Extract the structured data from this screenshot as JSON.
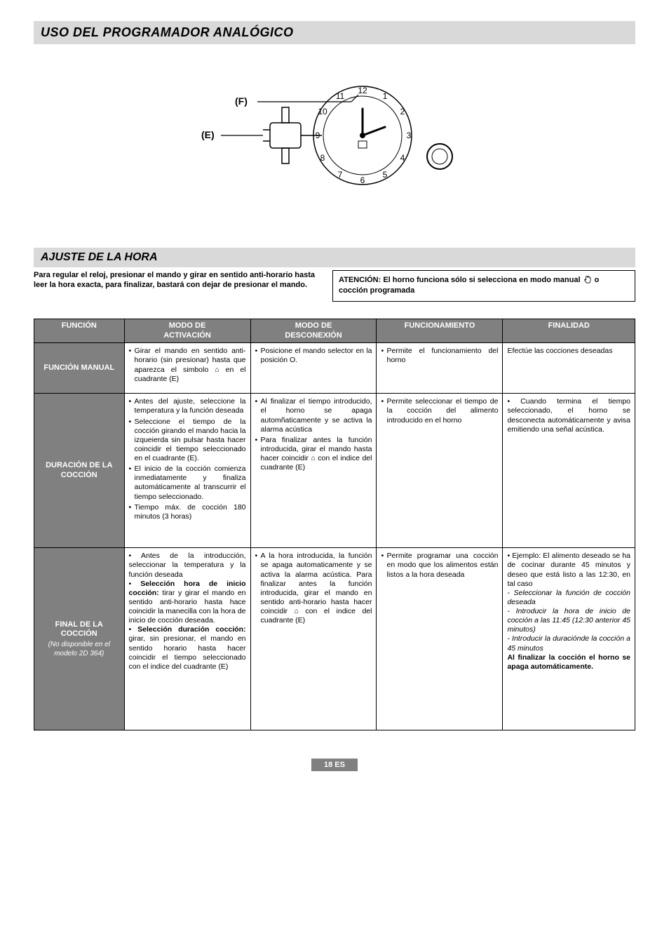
{
  "page": {
    "title": "USO DEL PROGRAMADOR ANALÓGICO",
    "section_title": "AJUSTE DE LA HORA",
    "intro_left": "Para regular el reloj, presionar el mando y girar en sentido anti-horario hasta leer la hora exacta, para finalizar, bastará con dejar de presionar el mando.",
    "intro_right_a": "ATENCIÓN: El horno funciona sólo si selecciona en modo manual ",
    "intro_right_b": " o cocción programada",
    "footer": "18 ES"
  },
  "diagram": {
    "label_f": "(F)",
    "label_e": "(E)",
    "clock_numbers": [
      "12",
      "1",
      "2",
      "3",
      "4",
      "5",
      "6",
      "7",
      "8",
      "9",
      "10",
      "11"
    ],
    "colors": {
      "stroke": "#000000",
      "fill": "#ffffff",
      "pointer": "#000000"
    }
  },
  "table": {
    "headers": {
      "funcion": "FUNCIÓN",
      "activacion": "MODO DE\nACTIVACIÓN",
      "desconexion": "MODO DE\nDESCONEXIÓN",
      "funcionamiento": "FUNCIONAMIENTO",
      "finalidad": "FINALIDAD"
    },
    "rows": [
      {
        "label": "FUNCIÓN MANUAL",
        "sublabel": "",
        "activacion": [
          "Girar el mando en sentido anti-horario (sin presionar) hasta que aparezca el simbolo ⌂ en el cuadrante (E)"
        ],
        "desconexion": [
          "Posicione el mando selector en la posición O."
        ],
        "funcionamiento": [
          "Permite el funcionamiento del horno"
        ],
        "finalidad": [
          "Efectúe las cocciones deseadas"
        ],
        "finalidad_html": "Efectúe las cocciones deseadas",
        "rowclass": "short-row"
      },
      {
        "label": "DURACIÓN DE LA COCCIÓN",
        "sublabel": "",
        "activacion": [
          "Antes del ajuste, selec­cione la temperatura y la función deseada",
          "Seleccione el tiempo de la cocción girando el mando hacia la izqueierda sin pulsar hasta hacer coincidir el tiempo seleccionado en el cuadrante (E).",
          "El inicio de la cocción comienza inmediatamente y finaliza automáticamente al transcurrir el tiempo seleccionado.",
          "Tiempo máx. de cocción 180 minutos (3 horas)"
        ],
        "desconexion": [
          "Al finalizar el tiempo introducido, el horno se apaga automñaticamente y se activa la alarma acústica",
          "Para finalizar antes la función introducida, girar el mando hasta hacer coincidir ⌂ con el indice del cuadrante (E)"
        ],
        "funcionamiento": [
          "Permite seleccionar el tiempo de la cocción del alimento introducido en el horno"
        ],
        "finalidad": [
          "Cuando termina el tiempo seleccionado, el horno se desconecta automática­mente y avisa emitiendo una señal acústica."
        ],
        "finalidad_html": "• Cuando termina el tiempo seleccionado, el horno se desconecta automática­mente y avisa emitiendo una señal acústica.",
        "rowclass": "mid-row"
      },
      {
        "label": "FINAL DE LA COCCIÓN",
        "sublabel": "(No disponible en el modelo 2D 364)",
        "activacion_html": "• Antes de la introducción, seleccionar la temperatura y la función deseada<br>• <b>Selección hora de inicio cocción:</b> tirar y girar el mando en sentido anti-horario hasta hace coin­cidir la manecilla con la hora de inicio de cocción deseada.<br>• <b>Selección duración cocción:</b> girar, sin presionar, el mando en sentido horario hasta hacer coincidir el tiempo seleccionado con el indice del cuadrante (E)",
        "desconexion": [
          "A la hora introducida, la función se apaga automaticamente y se activa la alarma acústica. Para finalizar antes la función introducida, girar el mando en sentido anti-horario hasta hacer coincidir ⌂ con el indice del cuadrante (E)"
        ],
        "funcionamiento": [
          "Permite programar una cocción en modo que los alimentos están listos a la hora deseada"
        ],
        "finalidad_html": "• Ejemplo: El alimento deseado se ha de cocinar durante 45 minutos y deseo que está listo a las 12:30, en tal caso<br>- <i>Seleccionar la función de cocción deseada</i><br>- <i>Introducir la hora de inicio de cocción a las 11:45 (12:30 anterior 45 minutos)</i><br>- <i>Introducir la duraciónde la cocción a 45 minutos</i><br><b>Al finalizar la cocción el horno se apaga automáticamente.</b>",
        "rowclass": "tall-row"
      }
    ]
  },
  "style": {
    "header_bg": "#808080",
    "header_fg": "#ffffff",
    "bar_bg": "#d9d9d9",
    "border": "#000000"
  }
}
